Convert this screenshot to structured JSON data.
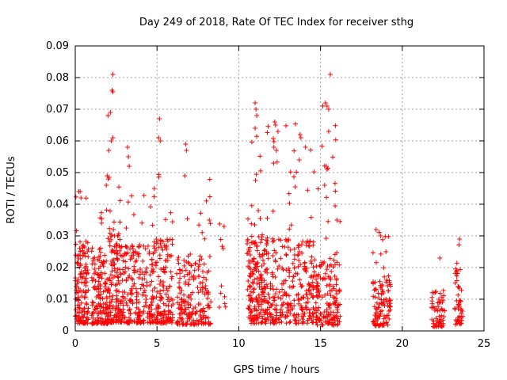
{
  "chart_data": {
    "type": "scatter",
    "title": "Day 249 of 2018, Rate Of TEC Index for receiver sthg",
    "xlabel": "GPS time / hours",
    "ylabel": "ROTI / TECUs",
    "xlim": [
      0,
      25
    ],
    "ylim": [
      0,
      0.09
    ],
    "xticks": [
      0,
      5,
      10,
      15,
      20,
      25
    ],
    "xtick_labels": [
      "0",
      "5",
      "10",
      "15",
      "20",
      "25"
    ],
    "yticks": [
      0,
      0.01,
      0.02,
      0.03,
      0.04,
      0.05,
      0.06,
      0.07,
      0.08,
      0.09
    ],
    "ytick_labels": [
      "0",
      "0.01",
      "0.02",
      "0.03",
      "0.04",
      "0.05",
      "0.06",
      "0.07",
      "0.08",
      "0.09"
    ],
    "grid": true,
    "marker": "+",
    "marker_color": "#ff0000",
    "series": [
      {
        "name": "ROTI",
        "clusters": [
          {
            "x_range": [
              0.0,
              0.8
            ],
            "count": 140,
            "y_base": 0.012,
            "y_spread": 0.014,
            "y_max": 0.045
          },
          {
            "x_range": [
              1.0,
              2.0
            ],
            "count": 150,
            "y_base": 0.011,
            "y_spread": 0.013,
            "y_max": 0.043
          },
          {
            "x_range": [
              2.0,
              2.8
            ],
            "count": 140,
            "y_base": 0.013,
            "y_spread": 0.016,
            "y_max": 0.049
          },
          {
            "x_range": [
              2.8,
              4.8
            ],
            "count": 220,
            "y_base": 0.012,
            "y_spread": 0.013,
            "y_max": 0.045
          },
          {
            "x_range": [
              4.8,
              6.0
            ],
            "count": 150,
            "y_base": 0.012,
            "y_spread": 0.015,
            "y_max": 0.053
          },
          {
            "x_range": [
              6.2,
              8.3
            ],
            "count": 200,
            "y_base": 0.01,
            "y_spread": 0.012,
            "y_max": 0.049
          },
          {
            "x_range": [
              8.8,
              9.2
            ],
            "count": 10,
            "y_base": 0.025,
            "y_spread": 0.006,
            "y_max": 0.034
          },
          {
            "x_range": [
              10.5,
              11.6
            ],
            "count": 180,
            "y_base": 0.012,
            "y_spread": 0.016,
            "y_max": 0.072
          },
          {
            "x_range": [
              11.6,
              14.8
            ],
            "count": 330,
            "y_base": 0.012,
            "y_spread": 0.015,
            "y_max": 0.066
          },
          {
            "x_range": [
              14.8,
              16.2
            ],
            "count": 150,
            "y_base": 0.009,
            "y_spread": 0.012,
            "y_max": 0.072
          },
          {
            "x_range": [
              18.2,
              19.3
            ],
            "count": 110,
            "y_base": 0.008,
            "y_spread": 0.008,
            "y_max": 0.032
          },
          {
            "x_range": [
              21.8,
              22.6
            ],
            "count": 60,
            "y_base": 0.006,
            "y_spread": 0.006,
            "y_max": 0.024
          },
          {
            "x_range": [
              23.2,
              23.7
            ],
            "count": 50,
            "y_base": 0.008,
            "y_spread": 0.01,
            "y_max": 0.03
          }
        ],
        "outliers": [
          {
            "x": 2.3,
            "y": 0.081
          },
          {
            "x": 2.25,
            "y": 0.076
          },
          {
            "x": 2.3,
            "y": 0.0755
          },
          {
            "x": 2.0,
            "y": 0.068
          },
          {
            "x": 2.15,
            "y": 0.069
          },
          {
            "x": 2.3,
            "y": 0.061
          },
          {
            "x": 2.2,
            "y": 0.06
          },
          {
            "x": 2.05,
            "y": 0.057
          },
          {
            "x": 1.95,
            "y": 0.049
          },
          {
            "x": 1.9,
            "y": 0.046
          },
          {
            "x": 3.2,
            "y": 0.058
          },
          {
            "x": 3.25,
            "y": 0.055
          },
          {
            "x": 3.3,
            "y": 0.052
          },
          {
            "x": 5.15,
            "y": 0.067
          },
          {
            "x": 5.1,
            "y": 0.061
          },
          {
            "x": 5.2,
            "y": 0.06
          },
          {
            "x": 6.75,
            "y": 0.059
          },
          {
            "x": 6.8,
            "y": 0.057
          },
          {
            "x": 6.7,
            "y": 0.049
          },
          {
            "x": 11.0,
            "y": 0.072
          },
          {
            "x": 11.05,
            "y": 0.07
          },
          {
            "x": 11.1,
            "y": 0.068
          },
          {
            "x": 11.0,
            "y": 0.064
          },
          {
            "x": 12.2,
            "y": 0.066
          },
          {
            "x": 12.25,
            "y": 0.065
          },
          {
            "x": 12.4,
            "y": 0.063
          },
          {
            "x": 12.15,
            "y": 0.058
          },
          {
            "x": 12.3,
            "y": 0.057
          },
          {
            "x": 13.75,
            "y": 0.062
          },
          {
            "x": 13.8,
            "y": 0.061
          },
          {
            "x": 13.7,
            "y": 0.054
          },
          {
            "x": 15.6,
            "y": 0.081
          },
          {
            "x": 15.3,
            "y": 0.072
          },
          {
            "x": 15.4,
            "y": 0.071
          },
          {
            "x": 15.5,
            "y": 0.07
          },
          {
            "x": 15.5,
            "y": 0.063
          },
          {
            "x": 15.35,
            "y": 0.052
          },
          {
            "x": 15.4,
            "y": 0.051
          },
          {
            "x": 15.25,
            "y": 0.046
          },
          {
            "x": 0.3,
            "y": 0.044
          },
          {
            "x": 0.35,
            "y": 0.042
          },
          {
            "x": 8.2,
            "y": 0.035
          },
          {
            "x": 9.1,
            "y": 0.033
          },
          {
            "x": 18.4,
            "y": 0.032
          },
          {
            "x": 19.0,
            "y": 0.025
          },
          {
            "x": 22.3,
            "y": 0.023
          },
          {
            "x": 23.5,
            "y": 0.029
          },
          {
            "x": 16.0,
            "y": 0.035
          }
        ]
      }
    ]
  }
}
